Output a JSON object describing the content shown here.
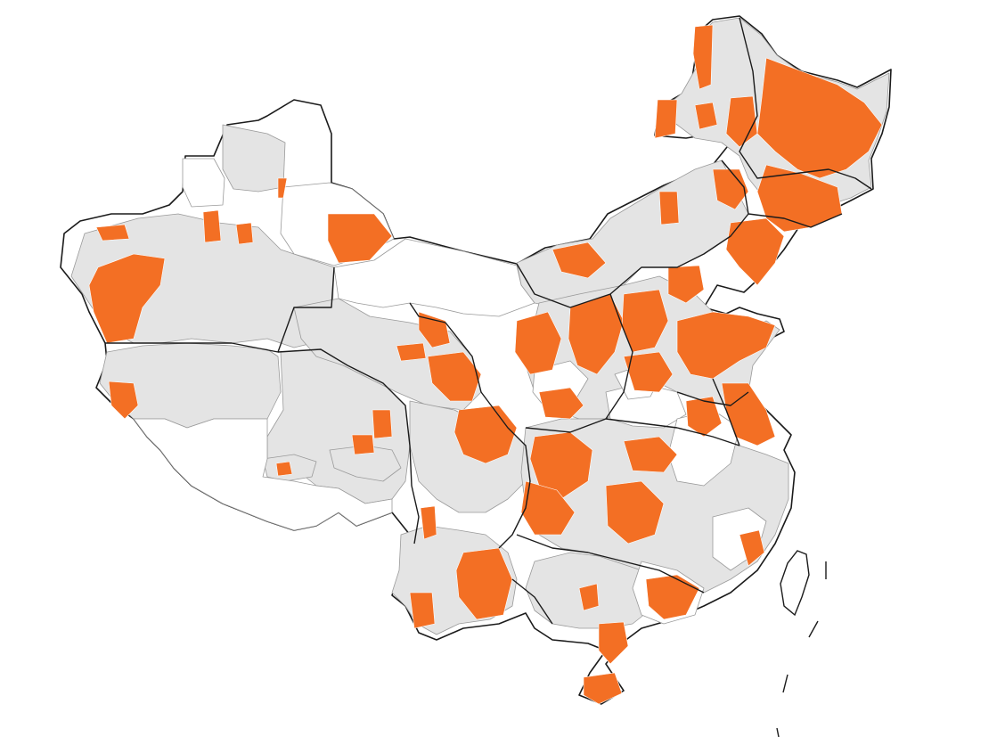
{
  "map": {
    "colors": {
      "highlighted": "#f36f24",
      "not_highlighted": "#e4e4e4",
      "no_data": "#ffffff",
      "border": "#1b1b1b",
      "sub_border": "#9a9a9a"
    }
  }
}
